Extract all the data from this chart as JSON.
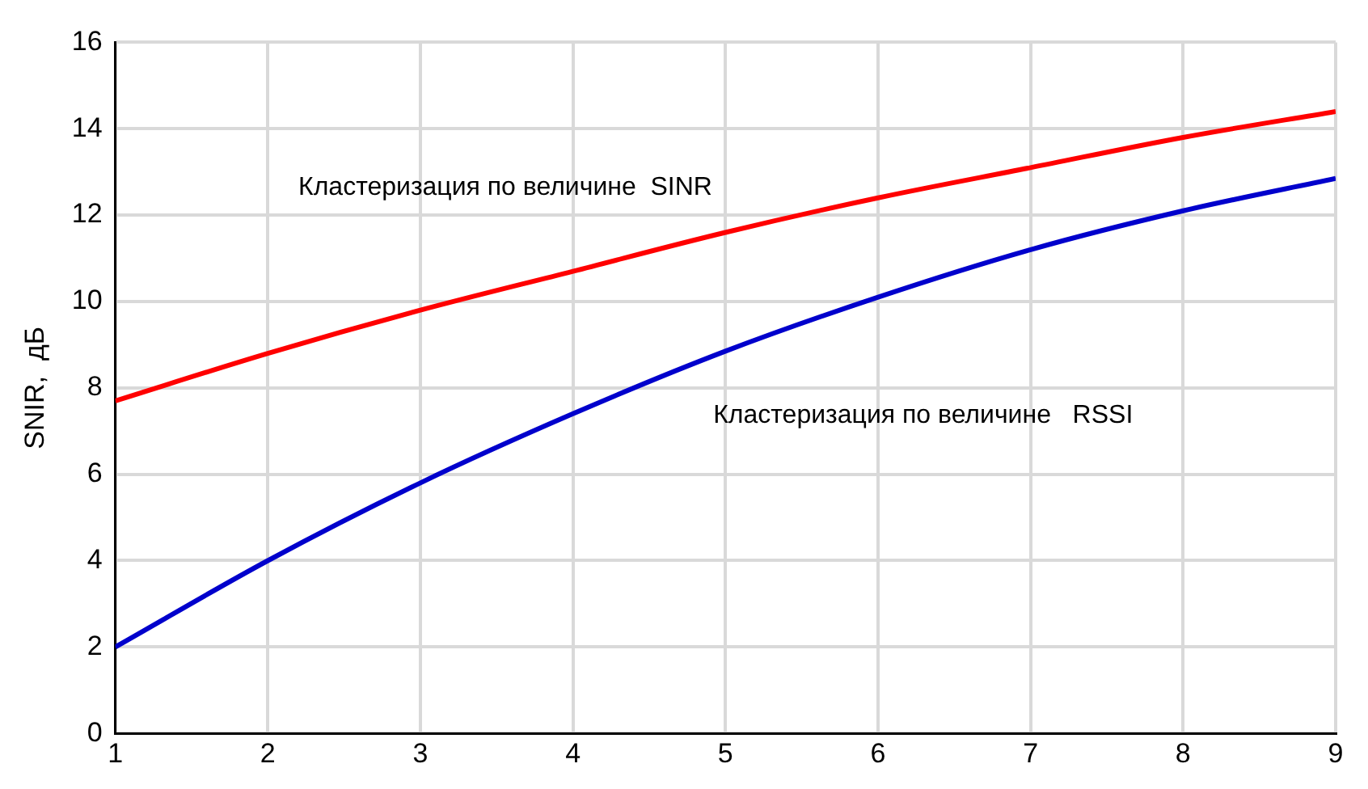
{
  "chart_data": {
    "type": "line",
    "ylabel": "SNIR,  дБ",
    "x": [
      1,
      2,
      3,
      4,
      5,
      6,
      7,
      8,
      9
    ],
    "series": [
      {
        "name": "Кластеризация по величине  SINR",
        "color": "#ff0000",
        "values": [
          7.7,
          8.8,
          9.8,
          10.7,
          11.6,
          12.4,
          13.1,
          13.8,
          14.4
        ]
      },
      {
        "name": "Кластеризация по величине   RSSI",
        "color": "#0000cc",
        "values": [
          2.0,
          4.0,
          5.8,
          7.4,
          8.85,
          10.1,
          11.2,
          12.1,
          12.85
        ]
      }
    ],
    "xlim": [
      1,
      9
    ],
    "xticks": [
      1,
      2,
      3,
      4,
      5,
      6,
      7,
      8,
      9
    ],
    "ylim": [
      0,
      16
    ],
    "yticks": [
      0,
      2,
      4,
      6,
      8,
      10,
      12,
      14,
      16
    ],
    "grid": true,
    "legend": false,
    "marker": "none",
    "line_style": "solid"
  }
}
